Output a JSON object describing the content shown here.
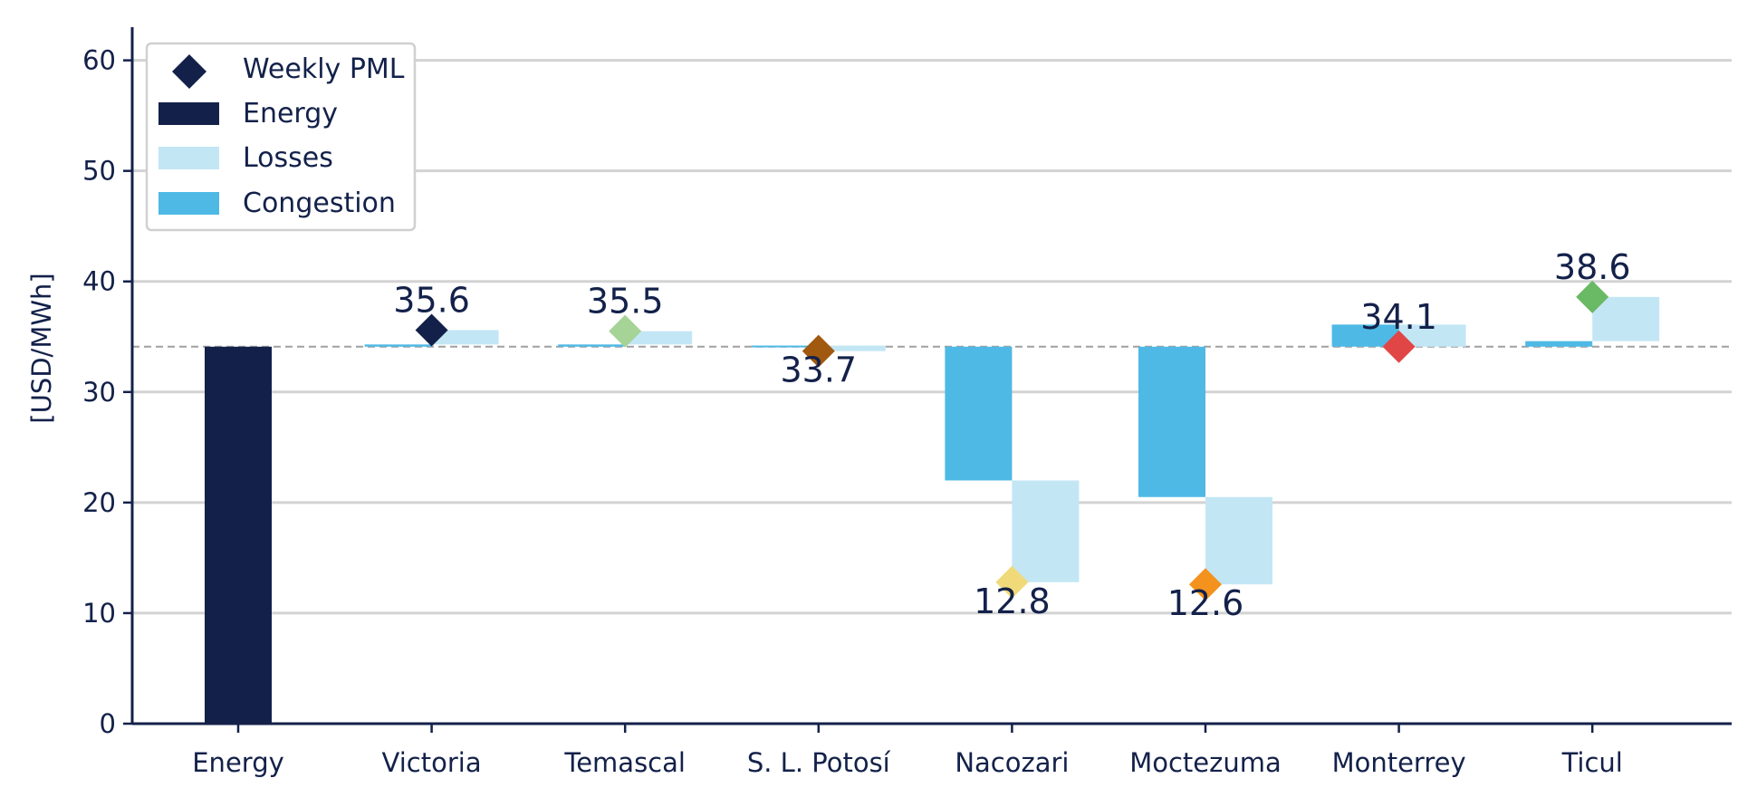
{
  "chart_data": {
    "type": "bar",
    "title": "",
    "xlabel": "",
    "ylabel": "[USD/MWh]",
    "ylim": [
      0,
      63
    ],
    "yticks": [
      0,
      10,
      20,
      30,
      40,
      50,
      60
    ],
    "grid": "horizontal",
    "legend_position": "top-left",
    "categories": [
      "Energy",
      "Victoria",
      "Temascal",
      "S. L. Potosí",
      "Nacozari",
      "Moctezuma",
      "Monterrey",
      "Ticul"
    ],
    "energy": 34.1,
    "reference_line": 34.1,
    "congestion": [
      null,
      0.2,
      0.2,
      0.1,
      -12.1,
      -13.6,
      2.0,
      0.5
    ],
    "losses": [
      null,
      1.3,
      1.2,
      -0.5,
      -9.2,
      -7.9,
      -2.0,
      4.0
    ],
    "weekly_pml": [
      null,
      35.6,
      35.5,
      33.7,
      12.8,
      12.6,
      34.1,
      38.6
    ],
    "pml_labels": [
      "",
      "35.6",
      "35.5",
      "33.7",
      "12.8",
      "12.6",
      "34.1",
      "38.6"
    ],
    "marker_colors": [
      "",
      "#13214a",
      "#a6d396",
      "#a0590f",
      "#f0d978",
      "#f3921d",
      "#e04646",
      "#6ab964"
    ],
    "colors": {
      "energy": "#13214a",
      "losses": "#c3e6f4",
      "congestion": "#4eb9e5",
      "axis": "#13214a",
      "grid": "#d3d3d3",
      "reference": "#a0a0a0"
    },
    "legend": [
      {
        "name": "Weekly PML",
        "kind": "marker"
      },
      {
        "name": "Energy",
        "kind": "energy"
      },
      {
        "name": "Losses",
        "kind": "losses"
      },
      {
        "name": "Congestion",
        "kind": "congestion"
      }
    ]
  }
}
